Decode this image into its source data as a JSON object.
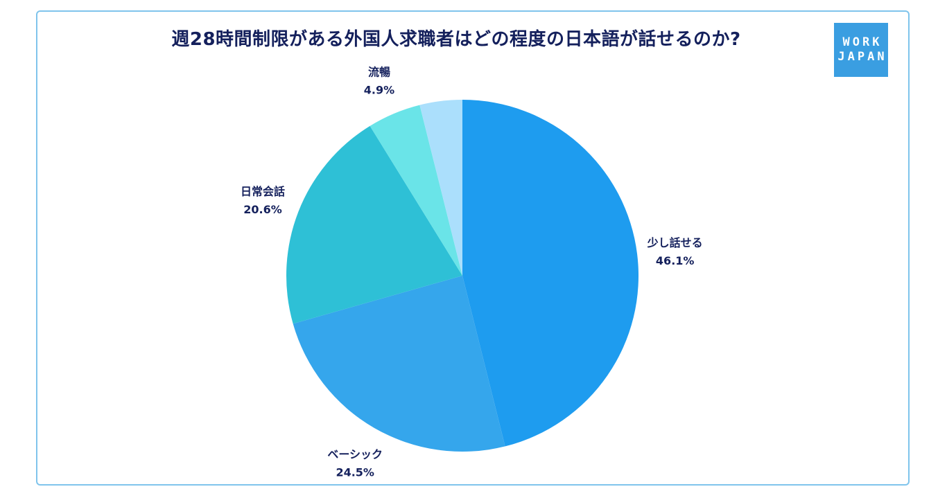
{
  "brand": {
    "line1": "WORK",
    "line2": "JAPAN",
    "color": "#3a9ee1"
  },
  "chart_data": {
    "type": "pie",
    "title": "週28時間制限がある外国人求職者はどの程度の日本語が話せるのか?",
    "slices": [
      {
        "label": "少し話せる",
        "value": 46.1,
        "display": "46.1%",
        "color": "#1e9cef"
      },
      {
        "label": "ベーシック",
        "value": 24.5,
        "display": "24.5%",
        "color": "#35a6ec"
      },
      {
        "label": "日常会話",
        "value": 20.6,
        "display": "20.6%",
        "color": "#2ec0d6"
      },
      {
        "label": "流暢",
        "value": 4.9,
        "display": "4.9%",
        "color": "#6ae4e8"
      },
      {
        "label": "",
        "value": 3.9,
        "display": "",
        "color": "#abdffc"
      }
    ],
    "start": "12 o'clock",
    "direction": "clockwise",
    "legend": "none"
  }
}
